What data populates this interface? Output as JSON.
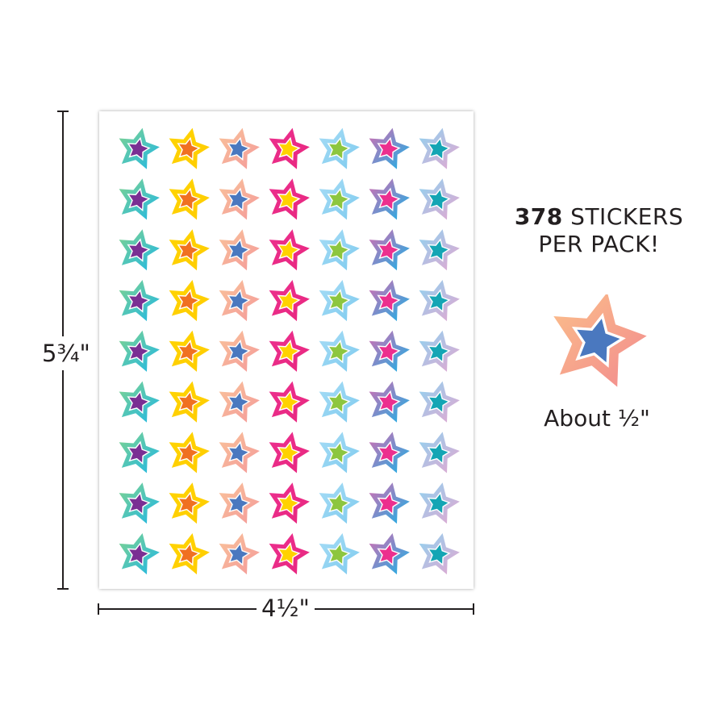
{
  "sheet": {
    "rows": 9,
    "columns": [
      {
        "outer": [
          "#7fd38f",
          "#1fb7e6"
        ],
        "inner": "#7a2f93"
      },
      {
        "outer": [
          "#ffd400",
          "#ffcc00"
        ],
        "inner": "#f07021"
      },
      {
        "outer": [
          "#f9c29a",
          "#f49a9a"
        ],
        "inner": "#4a78bf"
      },
      {
        "outer": [
          "#ec2f8e",
          "#e8277f"
        ],
        "inner": "#ffd200"
      },
      {
        "outer": [
          "#a6dcf5",
          "#7fcbef"
        ],
        "inner": "#8dc63f"
      },
      {
        "outer": [
          "#d86bb0",
          "#14b4e8"
        ],
        "inner": "#ec2f8e"
      },
      {
        "outer": [
          "#8fd3f0",
          "#e6a6d0"
        ],
        "inner": "#14a5b4"
      }
    ]
  },
  "dimensions": {
    "height": "5¾\"",
    "width": "4½\""
  },
  "callout": {
    "count": "378",
    "count_rest": " STICKERS",
    "line2": "PER PACK!"
  },
  "sample": {
    "label": "About ½\"",
    "outer": [
      "#fbbf8a",
      "#f28a8e"
    ],
    "inner": "#4a78bf"
  }
}
